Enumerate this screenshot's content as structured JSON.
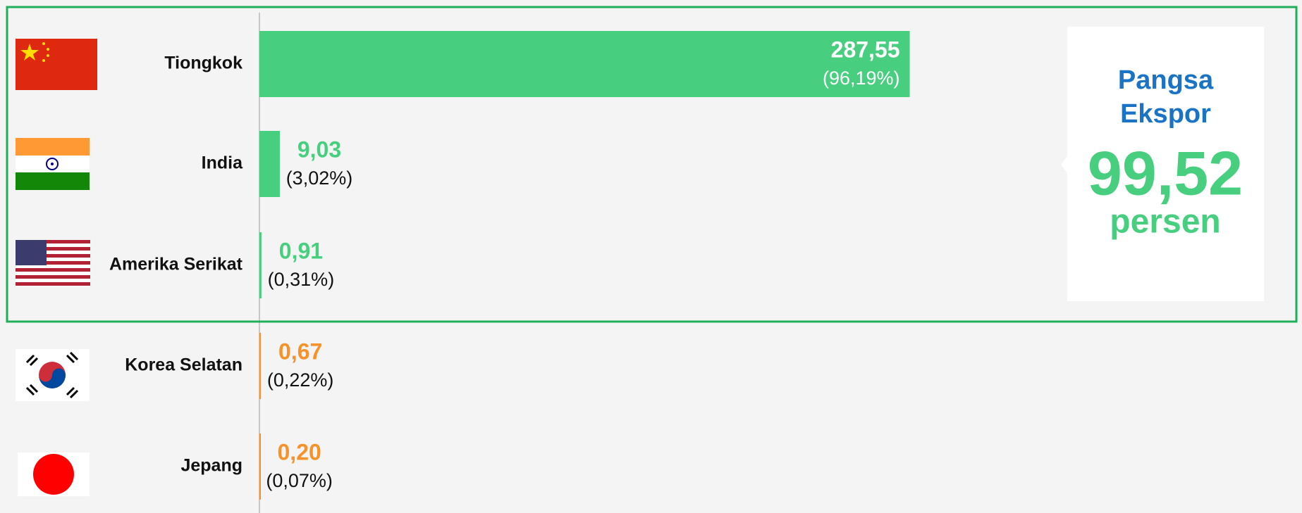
{
  "chart_data": {
    "type": "bar",
    "orientation": "horizontal",
    "categories": [
      "Tiongkok",
      "India",
      "Amerika Serikat",
      "Korea Selatan",
      "Jepang"
    ],
    "values": [
      287.55,
      9.03,
      0.91,
      0.67,
      0.2
    ],
    "value_labels": [
      "287,55",
      "9,03",
      "0,91",
      "0,67",
      "0,20"
    ],
    "share_labels": [
      "(96,19%)",
      "(3,02%)",
      "(0,31%)",
      "(0,22%)",
      "(0,07%)"
    ],
    "colors": [
      "#47cf7f",
      "#47cf7f",
      "#47cf7f",
      "#f5922a",
      "#f5922a"
    ],
    "xlim": [
      0,
      461
    ]
  },
  "callout": {
    "title": "Pangsa Ekspor",
    "value_label": "99,52",
    "unit": "persen"
  }
}
